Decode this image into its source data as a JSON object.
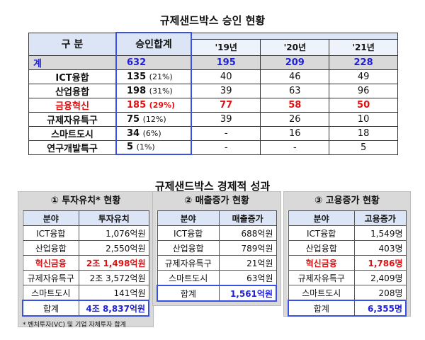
{
  "title1": "규제샌드박스 승인 현황",
  "title2": "규제샌드박스 경제적 성과",
  "approval": {
    "header_category": "구 분",
    "header_total": "승인합계",
    "years": [
      "'19년",
      "'20년",
      "'21년"
    ],
    "rows": [
      {
        "name": "계",
        "total": "632",
        "pct": "",
        "y19": "195",
        "y20": "209",
        "y21": "228"
      },
      {
        "name": "ICT융합",
        "total": "135",
        "pct": "(21%)",
        "y19": "40",
        "y20": "46",
        "y21": "49"
      },
      {
        "name": "산업융합",
        "total": "198",
        "pct": "(31%)",
        "y19": "39",
        "y20": "63",
        "y21": "96"
      },
      {
        "name": "금융혁신",
        "total": "185",
        "pct": "(29%)",
        "y19": "77",
        "y20": "58",
        "y21": "50"
      },
      {
        "name": "규제자유특구",
        "total": "75",
        "pct": "(12%)",
        "y19": "39",
        "y20": "26",
        "y21": "10"
      },
      {
        "name": "스마트도시",
        "total": "34",
        "pct": "(6%)",
        "y19": "-",
        "y20": "16",
        "y21": "18"
      },
      {
        "name": "연구개발특구",
        "total": "5",
        "pct": "(1%)",
        "y19": "-",
        "y20": "-",
        "y21": "5"
      }
    ]
  },
  "investment": {
    "title": "① 투자유치* 현황",
    "col1": "분야",
    "col2": "투자유치",
    "rows": [
      {
        "name": "ICT융합",
        "val": "1,076억원"
      },
      {
        "name": "산업융합",
        "val": "2,550억원"
      },
      {
        "name": "혁신금융",
        "val": "2조 1,498억원"
      },
      {
        "name": "규제자유특구",
        "val": "2조 3,572억원"
      },
      {
        "name": "스마트도시",
        "val": "141억원"
      }
    ],
    "sum_label": "합계",
    "sum_val": "4조 8,837억원",
    "note": "* 벤처투자(VC) 및 기업 자체투자 합계"
  },
  "sales": {
    "title": "② 매출증가 현황",
    "col1": "분야",
    "col2": "매출증가",
    "rows": [
      {
        "name": "ICT융합",
        "val": "688억원"
      },
      {
        "name": "산업융합",
        "val": "789억원"
      },
      {
        "name": "규제자유특구",
        "val": "21억원"
      },
      {
        "name": "스마트도시",
        "val": "63억원"
      }
    ],
    "sum_label": "합계",
    "sum_val": "1,561억원"
  },
  "employment": {
    "title": "③ 고용증가 현황",
    "col1": "분야",
    "col2": "고용증가",
    "rows": [
      {
        "name": "ICT융합",
        "val": "1,549명"
      },
      {
        "name": "산업융합",
        "val": "403명"
      },
      {
        "name": "혁신금융",
        "val": "1,786명"
      },
      {
        "name": "규제자유특구",
        "val": "2,409명"
      },
      {
        "name": "스마트도시",
        "val": "208명"
      }
    ],
    "sum_label": "합계",
    "sum_val": "6,355명"
  },
  "colors": {
    "blue": "#1f1fd6",
    "red": "#e01010",
    "header_bg": "#dbe5f5",
    "panel_bg": "#d9d9d9"
  }
}
